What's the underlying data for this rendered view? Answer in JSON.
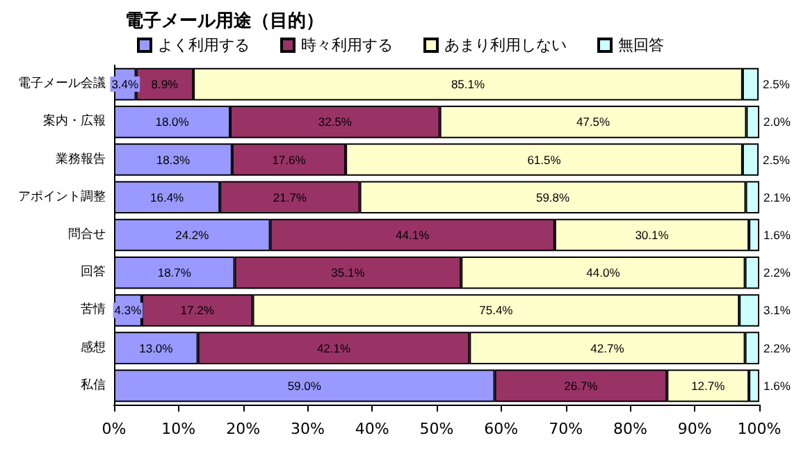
{
  "chart_data": {
    "type": "bar",
    "orientation": "horizontal",
    "stacked": true,
    "title": "電子メール用途（目的）",
    "categories": [
      "電子メール会議",
      "案内・広報",
      "業務報告",
      "アポイント調整",
      "問合せ",
      "回答",
      "苦情",
      "感想",
      "私信"
    ],
    "series": [
      {
        "name": "よく利用する",
        "color": "#9999ff",
        "values": [
          3.4,
          18.0,
          18.3,
          16.4,
          24.2,
          18.7,
          4.3,
          13.0,
          59.0
        ],
        "value_labels": [
          "3.4%",
          "18.0%",
          "18.3%",
          "16.4%",
          "24.2%",
          "18.7%",
          "4.3%",
          "13.0%",
          "59.0%"
        ]
      },
      {
        "name": "時々利用する",
        "color": "#993366",
        "values": [
          8.9,
          32.5,
          17.6,
          21.7,
          44.1,
          35.1,
          17.2,
          42.1,
          26.7
        ],
        "value_labels": [
          "8.9%",
          "32.5%",
          "17.6%",
          "21.7%",
          "44.1%",
          "35.1%",
          "17.2%",
          "42.1%",
          "26.7%"
        ]
      },
      {
        "name": "あまり利用しない",
        "color": "#ffffcc",
        "values": [
          85.1,
          47.5,
          61.5,
          59.8,
          30.1,
          44.0,
          75.4,
          42.7,
          12.7
        ],
        "value_labels": [
          "85.1%",
          "47.5%",
          "61.5%",
          "59.8%",
          "30.1%",
          "44.0%",
          "75.4%",
          "42.7%",
          "12.7%"
        ]
      },
      {
        "name": "無回答",
        "color": "#ccffff",
        "values": [
          2.5,
          2.0,
          2.5,
          2.1,
          1.6,
          2.2,
          3.1,
          2.2,
          1.6
        ],
        "value_labels": [
          "2.5%",
          "2.0%",
          "2.5%",
          "2.1%",
          "1.6%",
          "2.2%",
          "3.1%",
          "2.2%",
          "1.6%"
        ]
      }
    ],
    "xlim": [
      0,
      100
    ],
    "xticks": [
      {
        "value": 0,
        "label": "0%"
      },
      {
        "value": 10,
        "label": "10%"
      },
      {
        "value": 20,
        "label": "20%"
      },
      {
        "value": 30,
        "label": "30%"
      },
      {
        "value": 40,
        "label": "40%"
      },
      {
        "value": 50,
        "label": "50%"
      },
      {
        "value": 60,
        "label": "60%"
      },
      {
        "value": 70,
        "label": "70%"
      },
      {
        "value": 80,
        "label": "80%"
      },
      {
        "value": 90,
        "label": "90%"
      },
      {
        "value": 100,
        "label": "100%"
      }
    ],
    "legend": "top",
    "grid": false
  }
}
